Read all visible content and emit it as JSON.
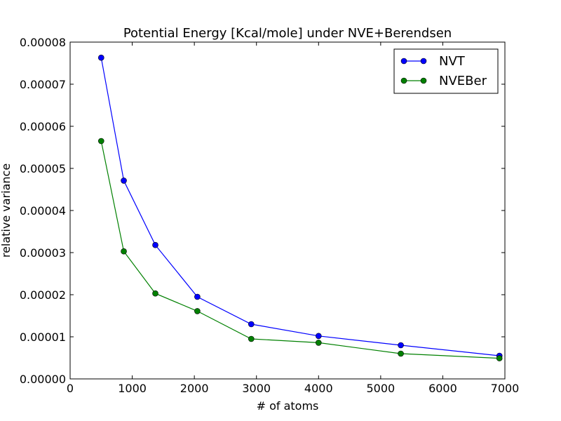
{
  "chart_data": {
    "type": "line",
    "title": "Potential Energy [Kcal/mole] under NVE+Berendsen",
    "xlabel": "# of atoms",
    "ylabel": "relative variance",
    "xlim": [
      0,
      7000
    ],
    "ylim": [
      0,
      8e-05
    ],
    "x_ticks": [
      0,
      1000,
      2000,
      3000,
      4000,
      5000,
      6000,
      7000
    ],
    "x_tick_labels": [
      "0",
      "1000",
      "2000",
      "3000",
      "4000",
      "5000",
      "6000",
      "7000"
    ],
    "y_ticks": [
      0,
      1e-05,
      2e-05,
      3e-05,
      4e-05,
      5e-05,
      6e-05,
      7e-05,
      8e-05
    ],
    "y_tick_labels": [
      "0.00000",
      "0.00001",
      "0.00002",
      "0.00003",
      "0.00004",
      "0.00005",
      "0.00006",
      "0.00007",
      "0.00008"
    ],
    "grid": false,
    "legend_position": "top-right",
    "x": [
      500,
      864,
      1372,
      2048,
      2916,
      4000,
      5324,
      6912
    ],
    "series": [
      {
        "name": "NVT",
        "color": "#0000ff",
        "marker_color": "#0000ff",
        "values": [
          7.63e-05,
          4.71e-05,
          3.18e-05,
          1.95e-05,
          1.3e-05,
          1.02e-05,
          8e-06,
          5.5e-06
        ]
      },
      {
        "name": "NVEBer",
        "color": "#008000",
        "marker_color": "#008000",
        "values": [
          5.65e-05,
          3.03e-05,
          2.03e-05,
          1.61e-05,
          9.5e-06,
          8.6e-06,
          6e-06,
          4.9e-06
        ]
      }
    ]
  }
}
